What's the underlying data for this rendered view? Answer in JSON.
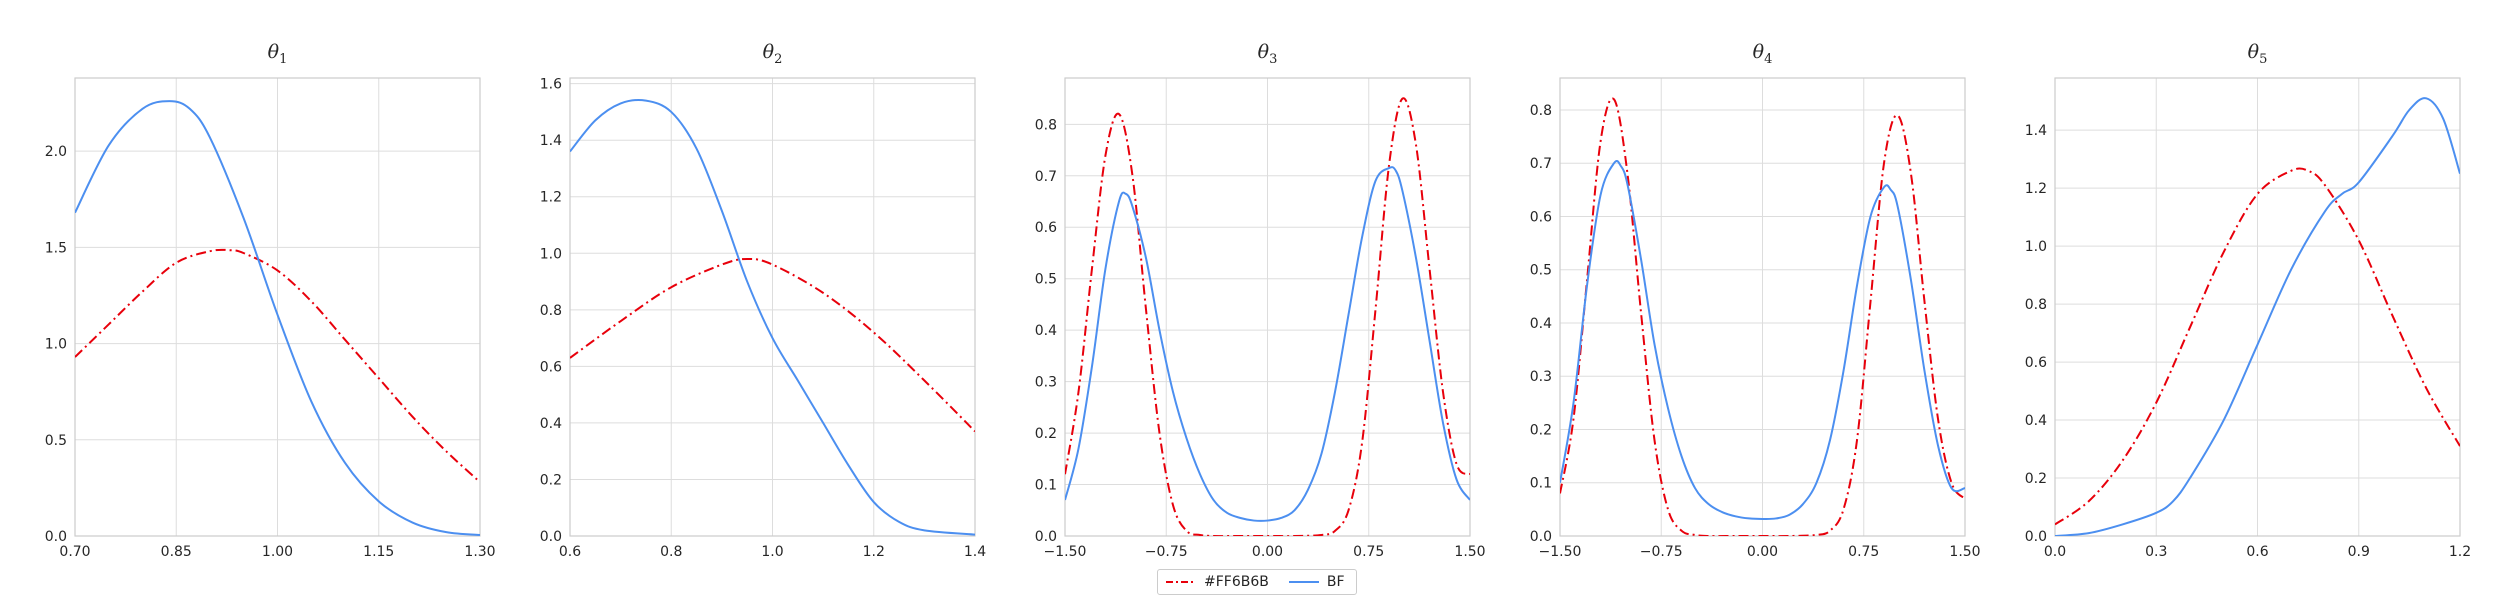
{
  "legend": {
    "items": [
      {
        "label": "#FF6B6B",
        "color": "#e8000b",
        "dash": "dashdot"
      },
      {
        "label": "BF",
        "color": "#4c8ff0",
        "dash": "solid"
      }
    ]
  },
  "chart_data": [
    {
      "type": "line",
      "title": "θ",
      "title_sub": "1",
      "xlim": [
        0.7,
        1.3
      ],
      "ylim": [
        0,
        2.38
      ],
      "xticks": [
        "0.70",
        "0.85",
        "1.00",
        "1.15",
        "1.30"
      ],
      "xtick_values": [
        0.7,
        0.85,
        1.0,
        1.15,
        1.3
      ],
      "yticks": [
        "0.0",
        "0.5",
        "1.0",
        "1.5",
        "2.0"
      ],
      "ytick_values": [
        0,
        0.5,
        1.0,
        1.5,
        2.0
      ],
      "series": [
        {
          "name": "#FF6B6B",
          "color": "#e8000b",
          "dash": "dashdot",
          "x": [
            0.7,
            0.75,
            0.8,
            0.85,
            0.9,
            0.93,
            0.95,
            1.0,
            1.05,
            1.1,
            1.15,
            1.2,
            1.25,
            1.3
          ],
          "y": [
            0.93,
            1.1,
            1.27,
            1.42,
            1.48,
            1.485,
            1.47,
            1.38,
            1.22,
            1.02,
            0.82,
            0.62,
            0.44,
            0.28
          ]
        },
        {
          "name": "BF",
          "color": "#4c8ff0",
          "dash": "solid",
          "x": [
            0.7,
            0.75,
            0.8,
            0.84,
            0.87,
            0.9,
            0.95,
            1.0,
            1.05,
            1.1,
            1.15,
            1.2,
            1.25,
            1.3
          ],
          "y": [
            1.68,
            2.03,
            2.22,
            2.26,
            2.22,
            2.07,
            1.65,
            1.15,
            0.7,
            0.38,
            0.18,
            0.07,
            0.02,
            0.005
          ]
        }
      ]
    },
    {
      "type": "line",
      "title": "θ",
      "title_sub": "2",
      "xlim": [
        0.6,
        1.4
      ],
      "ylim": [
        0,
        1.62
      ],
      "xticks": [
        "0.6",
        "0.8",
        "1.0",
        "1.2",
        "1.4"
      ],
      "xtick_values": [
        0.6,
        0.8,
        1.0,
        1.2,
        1.4
      ],
      "yticks": [
        "0.0",
        "0.2",
        "0.4",
        "0.6",
        "0.8",
        "1.0",
        "1.2",
        "1.4",
        "1.6"
      ],
      "ytick_values": [
        0,
        0.2,
        0.4,
        0.6,
        0.8,
        1.0,
        1.2,
        1.4,
        1.6
      ],
      "series": [
        {
          "name": "#FF6B6B",
          "color": "#e8000b",
          "dash": "dashdot",
          "x": [
            0.6,
            0.7,
            0.8,
            0.9,
            0.95,
            1.0,
            1.1,
            1.2,
            1.3,
            1.4
          ],
          "y": [
            0.63,
            0.76,
            0.88,
            0.96,
            0.98,
            0.96,
            0.86,
            0.72,
            0.55,
            0.37
          ]
        },
        {
          "name": "BF",
          "color": "#4c8ff0",
          "dash": "solid",
          "x": [
            0.6,
            0.65,
            0.7,
            0.75,
            0.8,
            0.85,
            0.9,
            0.95,
            1.0,
            1.05,
            1.1,
            1.15,
            1.2,
            1.25,
            1.3,
            1.4
          ],
          "y": [
            1.36,
            1.47,
            1.53,
            1.54,
            1.5,
            1.37,
            1.15,
            0.9,
            0.7,
            0.55,
            0.4,
            0.25,
            0.12,
            0.05,
            0.02,
            0.005
          ]
        }
      ]
    },
    {
      "type": "line",
      "title": "θ",
      "title_sub": "3",
      "xlim": [
        -1.5,
        1.5
      ],
      "ylim": [
        0,
        0.89
      ],
      "xticks": [
        "−1.50",
        "−0.75",
        "0.00",
        "0.75",
        "1.50"
      ],
      "xtick_values": [
        -1.5,
        -0.75,
        0,
        0.75,
        1.5
      ],
      "yticks": [
        "0.0",
        "0.1",
        "0.2",
        "0.3",
        "0.4",
        "0.5",
        "0.6",
        "0.7",
        "0.8"
      ],
      "ytick_values": [
        0,
        0.1,
        0.2,
        0.3,
        0.4,
        0.5,
        0.6,
        0.7,
        0.8
      ],
      "series": [
        {
          "name": "#FF6B6B",
          "color": "#e8000b",
          "dash": "dashdot",
          "x": [
            -1.5,
            -1.4,
            -1.3,
            -1.2,
            -1.1,
            -1.0,
            -0.9,
            -0.8,
            -0.7,
            -0.6,
            -0.5,
            -0.4,
            -0.2,
            0.0,
            0.2,
            0.4,
            0.5,
            0.6,
            0.7,
            0.8,
            0.9,
            1.0,
            1.1,
            1.2,
            1.3,
            1.4,
            1.5
          ],
          "y": [
            0.12,
            0.28,
            0.52,
            0.74,
            0.82,
            0.7,
            0.44,
            0.2,
            0.06,
            0.01,
            0.002,
            0.0,
            0.0,
            0.0,
            0.0,
            0.002,
            0.01,
            0.05,
            0.18,
            0.44,
            0.72,
            0.85,
            0.76,
            0.52,
            0.28,
            0.14,
            0.12
          ]
        },
        {
          "name": "BF",
          "color": "#4c8ff0",
          "dash": "solid",
          "x": [
            -1.5,
            -1.4,
            -1.3,
            -1.2,
            -1.1,
            -1.05,
            -1.0,
            -0.9,
            -0.8,
            -0.7,
            -0.6,
            -0.5,
            -0.4,
            -0.3,
            -0.2,
            -0.1,
            0.0,
            0.1,
            0.2,
            0.3,
            0.4,
            0.5,
            0.6,
            0.7,
            0.8,
            0.9,
            0.95,
            1.0,
            1.1,
            1.2,
            1.3,
            1.4,
            1.5
          ],
          "y": [
            0.07,
            0.17,
            0.33,
            0.52,
            0.65,
            0.665,
            0.64,
            0.54,
            0.4,
            0.28,
            0.19,
            0.12,
            0.07,
            0.045,
            0.035,
            0.03,
            0.03,
            0.035,
            0.05,
            0.09,
            0.16,
            0.28,
            0.43,
            0.58,
            0.69,
            0.715,
            0.71,
            0.67,
            0.54,
            0.38,
            0.22,
            0.11,
            0.07
          ]
        }
      ]
    },
    {
      "type": "line",
      "title": "θ",
      "title_sub": "4",
      "xlim": [
        -1.5,
        1.5
      ],
      "ylim": [
        0,
        0.86
      ],
      "xticks": [
        "−1.50",
        "−0.75",
        "0.00",
        "0.75",
        "1.50"
      ],
      "xtick_values": [
        -1.5,
        -0.75,
        0,
        0.75,
        1.5
      ],
      "yticks": [
        "0.0",
        "0.1",
        "0.2",
        "0.3",
        "0.4",
        "0.5",
        "0.6",
        "0.7",
        "0.8"
      ],
      "ytick_values": [
        0,
        0.1,
        0.2,
        0.3,
        0.4,
        0.5,
        0.6,
        0.7,
        0.8
      ],
      "series": [
        {
          "name": "#FF6B6B",
          "color": "#e8000b",
          "dash": "dashdot",
          "x": [
            -1.5,
            -1.4,
            -1.3,
            -1.2,
            -1.1,
            -1.0,
            -0.9,
            -0.8,
            -0.7,
            -0.6,
            -0.5,
            -0.4,
            -0.2,
            0.0,
            0.2,
            0.4,
            0.5,
            0.6,
            0.7,
            0.8,
            0.9,
            1.0,
            1.1,
            1.2,
            1.3,
            1.4,
            1.5
          ],
          "y": [
            0.08,
            0.22,
            0.48,
            0.74,
            0.82,
            0.68,
            0.42,
            0.18,
            0.05,
            0.01,
            0.002,
            0.0,
            0.0,
            0.0,
            0.0,
            0.002,
            0.01,
            0.05,
            0.18,
            0.44,
            0.7,
            0.79,
            0.68,
            0.44,
            0.22,
            0.1,
            0.07
          ]
        },
        {
          "name": "BF",
          "color": "#4c8ff0",
          "dash": "solid",
          "x": [
            -1.5,
            -1.4,
            -1.3,
            -1.2,
            -1.1,
            -1.05,
            -1.0,
            -0.9,
            -0.8,
            -0.7,
            -0.6,
            -0.5,
            -0.4,
            -0.3,
            -0.2,
            -0.1,
            0.0,
            0.1,
            0.2,
            0.3,
            0.4,
            0.5,
            0.6,
            0.7,
            0.8,
            0.9,
            0.95,
            1.0,
            1.1,
            1.2,
            1.3,
            1.4,
            1.5
          ],
          "y": [
            0.1,
            0.25,
            0.47,
            0.64,
            0.7,
            0.695,
            0.66,
            0.52,
            0.36,
            0.24,
            0.15,
            0.09,
            0.06,
            0.045,
            0.037,
            0.033,
            0.032,
            0.033,
            0.04,
            0.06,
            0.1,
            0.18,
            0.31,
            0.47,
            0.6,
            0.655,
            0.65,
            0.62,
            0.48,
            0.31,
            0.17,
            0.09,
            0.09
          ]
        }
      ]
    },
    {
      "type": "line",
      "title": "θ",
      "title_sub": "5",
      "xlim": [
        0.0,
        1.2
      ],
      "ylim": [
        0,
        1.58
      ],
      "xticks": [
        "0.0",
        "0.3",
        "0.6",
        "0.9",
        "1.2"
      ],
      "xtick_values": [
        0.0,
        0.3,
        0.6,
        0.9,
        1.2
      ],
      "yticks": [
        "0.0",
        "0.2",
        "0.4",
        "0.6",
        "0.8",
        "1.0",
        "1.2",
        "1.4"
      ],
      "ytick_values": [
        0,
        0.2,
        0.4,
        0.6,
        0.8,
        1.0,
        1.2,
        1.4
      ],
      "series": [
        {
          "name": "#FF6B6B",
          "color": "#e8000b",
          "dash": "dashdot",
          "x": [
            0.0,
            0.1,
            0.2,
            0.3,
            0.4,
            0.5,
            0.6,
            0.7,
            0.75,
            0.8,
            0.9,
            1.0,
            1.1,
            1.2
          ],
          "y": [
            0.04,
            0.12,
            0.26,
            0.46,
            0.72,
            0.98,
            1.18,
            1.26,
            1.26,
            1.21,
            1.02,
            0.76,
            0.51,
            0.31
          ]
        },
        {
          "name": "BF",
          "color": "#4c8ff0",
          "dash": "solid",
          "x": [
            0.0,
            0.1,
            0.2,
            0.3,
            0.35,
            0.4,
            0.5,
            0.6,
            0.7,
            0.8,
            0.85,
            0.9,
            1.0,
            1.05,
            1.1,
            1.15,
            1.2
          ],
          "y": [
            0.0,
            0.01,
            0.04,
            0.08,
            0.12,
            0.2,
            0.4,
            0.66,
            0.92,
            1.12,
            1.18,
            1.22,
            1.38,
            1.47,
            1.51,
            1.44,
            1.25
          ]
        }
      ]
    }
  ]
}
